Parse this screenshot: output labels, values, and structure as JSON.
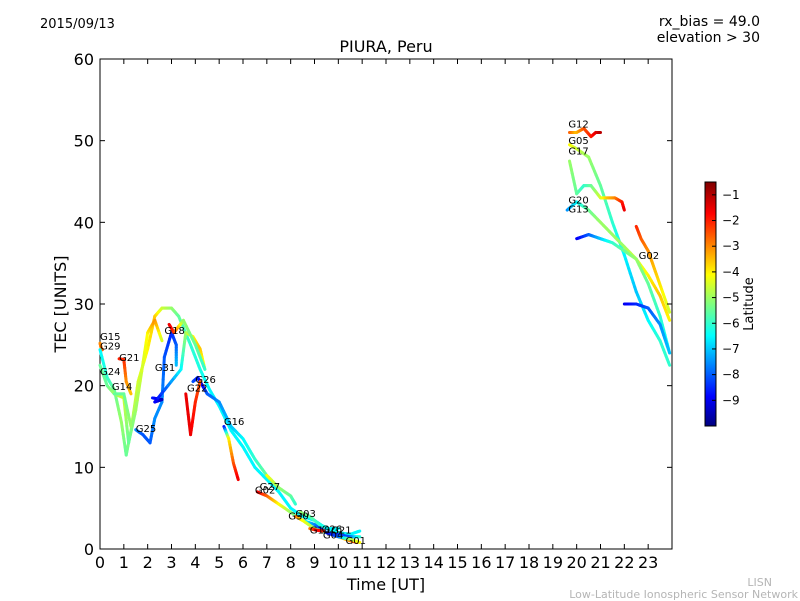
{
  "header": {
    "date": "2015/09/13",
    "rx_bias": "rx_bias = 49.0",
    "elevation": "elevation > 30"
  },
  "footer": {
    "line1": "LISN",
    "line2": "Low-Latitude Ionospheric Sensor Network"
  },
  "chart_data": {
    "type": "scatter",
    "title": "PIURA, Peru",
    "xlabel": "Time [UT]",
    "ylabel": "TEC [UNITS]",
    "xlim": [
      0,
      24
    ],
    "ylim": [
      0,
      60
    ],
    "xticks": [
      "0",
      "1",
      "2",
      "3",
      "4",
      "5",
      "6",
      "7",
      "8",
      "9",
      "10",
      "11",
      "12",
      "13",
      "14",
      "15",
      "16",
      "17",
      "18",
      "19",
      "20",
      "21",
      "22",
      "23"
    ],
    "yticks": [
      "0",
      "10",
      "20",
      "30",
      "40",
      "50",
      "60"
    ],
    "colorbar": {
      "label": "Latitude",
      "range": [
        -10,
        -0.5
      ],
      "ticks": [
        "-1",
        "-2",
        "-3",
        "-4",
        "-5",
        "-6",
        "-7",
        "-8",
        "-9"
      ],
      "colormap": [
        "#00007f",
        "#0000ff",
        "#007fff",
        "#00ffff",
        "#7fff7f",
        "#ffff00",
        "#ff7f00",
        "#ff0000",
        "#7f0000"
      ]
    },
    "series": [
      {
        "name": "G15",
        "points": [
          [
            0.0,
            25.2,
            -3.0
          ],
          [
            0.05,
            24.6,
            -2.8
          ],
          [
            0.1,
            24.4,
            -2.6
          ]
        ]
      },
      {
        "name": "G29",
        "points": [
          [
            0.0,
            24.4,
            -6.5
          ],
          [
            0.3,
            21.0,
            -6.0
          ],
          [
            0.6,
            19.5,
            -5.5
          ],
          [
            0.9,
            15.5,
            -5.0
          ],
          [
            1.1,
            11.5,
            -5.5
          ],
          [
            1.3,
            14.5,
            -5.0
          ],
          [
            1.6,
            20.5,
            -4.5
          ],
          [
            2.0,
            24.5,
            -4.0
          ],
          [
            2.3,
            28.5,
            -3.5
          ],
          [
            2.6,
            29.5,
            -4.5
          ],
          [
            3.0,
            29.5,
            -5.0
          ],
          [
            3.3,
            28.5,
            -5.5
          ],
          [
            3.8,
            25.0,
            -6.0
          ],
          [
            4.2,
            22.0,
            -6.2
          ],
          [
            4.6,
            19.5,
            -6.5
          ],
          [
            5.0,
            17.5,
            -6.5
          ],
          [
            5.5,
            14.5,
            -6.5
          ],
          [
            6.0,
            12.5,
            -6.5
          ],
          [
            6.5,
            10.0,
            -6.5
          ],
          [
            7.0,
            8.5,
            -6.5
          ],
          [
            7.5,
            7.0,
            -6.5
          ],
          [
            8.0,
            5.0,
            -6.5
          ],
          [
            8.5,
            4.0,
            -6.5
          ],
          [
            9.0,
            3.5,
            -6.5
          ],
          [
            9.5,
            2.5,
            -6.5
          ],
          [
            10.0,
            2.0,
            -6.5
          ],
          [
            10.5,
            1.8,
            -6.5
          ],
          [
            10.9,
            2.2,
            -6.5
          ]
        ]
      },
      {
        "name": "G21",
        "points": [
          [
            0.8,
            23.3,
            -2.0
          ],
          [
            1.0,
            23.2,
            -2.0
          ],
          [
            1.1,
            20.5,
            -3.0
          ],
          [
            1.3,
            19.0,
            -3.5
          ]
        ]
      },
      {
        "name": "G24",
        "points": [
          [
            0.0,
            22.5,
            -5.5
          ],
          [
            0.3,
            20.0,
            -5.5
          ],
          [
            0.6,
            19.0,
            -5.0
          ],
          [
            1.0,
            18.5,
            -4.5
          ],
          [
            1.2,
            13.0,
            -5.5
          ],
          [
            1.5,
            17.0,
            -5.0
          ],
          [
            2.0,
            26.5,
            -4.0
          ],
          [
            2.3,
            28.0,
            -3.0
          ],
          [
            2.6,
            25.5,
            -4.5
          ]
        ]
      },
      {
        "name": "G14",
        "points": [
          [
            0.6,
            19.0,
            -5.5
          ],
          [
            1.0,
            19.0,
            -5.5
          ],
          [
            1.3,
            15.0,
            -5.0
          ]
        ]
      },
      {
        "name": "G25",
        "points": [
          [
            1.5,
            14.6,
            -7.5
          ],
          [
            1.8,
            14.0,
            -8.0
          ],
          [
            2.1,
            13.0,
            -8.0
          ],
          [
            2.3,
            16.0,
            -7.5
          ],
          [
            2.6,
            18.0,
            -7.5
          ],
          [
            2.7,
            23.5,
            -8.0
          ],
          [
            3.0,
            26.5,
            -8.5
          ],
          [
            3.2,
            25.0,
            -8.0
          ],
          [
            3.2,
            22.5,
            -7.0
          ]
        ]
      },
      {
        "name": "G31",
        "points": [
          [
            2.2,
            18.5,
            -8.5
          ],
          [
            2.6,
            18.3,
            -9.5
          ],
          [
            2.3,
            18.0,
            -9.0
          ],
          [
            3.4,
            22.0,
            -6.5
          ],
          [
            3.6,
            26.5,
            -5.0
          ],
          [
            3.9,
            26.0,
            -4.0
          ],
          [
            4.2,
            24.5,
            -3.5
          ],
          [
            4.4,
            22.0,
            -4.5
          ]
        ]
      },
      {
        "name": "G18",
        "points": [
          [
            2.9,
            27.5,
            -1.5
          ],
          [
            3.1,
            26.5,
            -2.0
          ],
          [
            3.5,
            28.0,
            -5.0
          ],
          [
            4.0,
            25.0,
            -5.5
          ],
          [
            4.4,
            22.0,
            -6.0
          ]
        ]
      },
      {
        "name": "G26",
        "points": [
          [
            3.9,
            20.5,
            -8.0
          ],
          [
            4.1,
            21.0,
            -8.5
          ],
          [
            4.3,
            20.0,
            -9.0
          ],
          [
            4.5,
            19.0,
            -8.0
          ],
          [
            5.0,
            18.0,
            -7.5
          ],
          [
            5.5,
            15.0,
            -7.0
          ],
          [
            6.0,
            13.5,
            -6.5
          ],
          [
            6.5,
            11.0,
            -6.0
          ],
          [
            7.0,
            9.0,
            -5.5
          ],
          [
            7.5,
            7.5,
            -5.5
          ]
        ]
      },
      {
        "name": "G22",
        "points": [
          [
            3.6,
            19.0,
            -1.5
          ],
          [
            3.8,
            14.0,
            -1.5
          ],
          [
            4.0,
            18.0,
            -2.0
          ],
          [
            4.2,
            20.5,
            -2.5
          ]
        ]
      },
      {
        "name": "G16",
        "points": [
          [
            5.2,
            15.0,
            -9.0
          ],
          [
            5.4,
            13.5,
            -4.0
          ],
          [
            5.6,
            10.5,
            -2.5
          ],
          [
            5.8,
            8.5,
            -1.5
          ]
        ]
      },
      {
        "name": "G27",
        "points": [
          [
            7.0,
            9.0,
            -4.0
          ],
          [
            7.5,
            7.5,
            -5.0
          ],
          [
            8.0,
            6.5,
            -5.5
          ],
          [
            8.2,
            5.5,
            -6.0
          ]
        ]
      },
      {
        "name": "G02",
        "points": [
          [
            6.6,
            7.0,
            -1.5
          ],
          [
            7.0,
            6.5,
            -2.5
          ],
          [
            7.5,
            5.5,
            -4.0
          ],
          [
            8.0,
            4.5,
            -5.0
          ],
          [
            8.5,
            3.5,
            -6.0
          ],
          [
            9.0,
            3.0,
            -7.5
          ],
          [
            9.5,
            2.0,
            -9.0
          ],
          [
            10.5,
            1.5,
            -8.0
          ],
          [
            10.9,
            1.5,
            -6.0
          ]
        ]
      },
      {
        "name": "G30",
        "points": [
          [
            8.2,
            4.0,
            -2.5
          ],
          [
            8.5,
            3.5,
            -4.0
          ],
          [
            9.0,
            2.5,
            -5.0
          ],
          [
            9.5,
            2.0,
            -6.0
          ],
          [
            10.0,
            1.5,
            -4.0
          ],
          [
            10.5,
            1.0,
            -3.0
          ],
          [
            10.8,
            0.8,
            -2.0
          ]
        ]
      },
      {
        "name": "G03",
        "points": [
          [
            8.4,
            4.5,
            -5.0
          ],
          [
            8.8,
            4.0,
            -5.5
          ],
          [
            9.2,
            3.0,
            -6.0
          ],
          [
            9.6,
            2.5,
            -6.5
          ],
          [
            10.0,
            2.5,
            -6.5
          ]
        ]
      },
      {
        "name": "G10",
        "points": [
          [
            8.8,
            2.5,
            -3.0
          ],
          [
            9.1,
            2.3,
            -1.5
          ],
          [
            9.4,
            2.2,
            -2.0
          ]
        ]
      },
      {
        "name": "G01",
        "points": [
          [
            9.5,
            2.0,
            -9.0
          ],
          [
            10.0,
            1.5,
            -8.0
          ],
          [
            10.5,
            1.2,
            -5.0
          ],
          [
            10.9,
            0.8,
            -4.0
          ]
        ]
      },
      {
        "name": "G12",
        "points": [
          [
            19.7,
            51.0,
            -2.5
          ],
          [
            20.0,
            51.0,
            -3.5
          ],
          [
            20.3,
            51.5,
            -2.5
          ],
          [
            20.6,
            50.5,
            -2.0
          ],
          [
            20.8,
            51.0,
            -1.5
          ],
          [
            21.0,
            51.0,
            -1.0
          ]
        ]
      },
      {
        "name": "G05",
        "points": [
          [
            19.7,
            49.5,
            -4.0
          ],
          [
            20.0,
            49.0,
            -4.5
          ],
          [
            20.5,
            48.0,
            -5.0
          ],
          [
            21.0,
            44.5,
            -5.5
          ],
          [
            21.5,
            40.0,
            -6.0
          ],
          [
            22.0,
            36.0,
            -6.5
          ],
          [
            22.5,
            31.5,
            -7.0
          ],
          [
            23.0,
            28.0,
            -6.5
          ],
          [
            23.5,
            25.5,
            -6.0
          ],
          [
            23.9,
            22.5,
            -6.0
          ]
        ]
      },
      {
        "name": "G17",
        "points": [
          [
            19.7,
            47.5,
            -5.0
          ],
          [
            20.0,
            43.5,
            -5.5
          ],
          [
            20.3,
            44.5,
            -6.0
          ],
          [
            20.6,
            44.5,
            -5.5
          ],
          [
            21.0,
            43.0,
            -4.5
          ],
          [
            21.3,
            43.0,
            -3.5
          ],
          [
            21.6,
            43.0,
            -3.0
          ],
          [
            21.9,
            42.5,
            -2.0
          ],
          [
            22.0,
            41.5,
            -1.5
          ]
        ]
      },
      {
        "name": "G20",
        "points": [
          [
            19.6,
            41.5,
            -7.5
          ],
          [
            20.0,
            42.5,
            -6.5
          ],
          [
            20.5,
            41.5,
            -5.5
          ],
          [
            21.0,
            40.0,
            -5.0
          ],
          [
            21.5,
            38.5,
            -5.0
          ],
          [
            22.0,
            37.0,
            -5.0
          ],
          [
            22.5,
            35.5,
            -4.5
          ],
          [
            23.0,
            33.5,
            -4.0
          ],
          [
            23.5,
            31.0,
            -3.5
          ],
          [
            23.9,
            28.0,
            -4.0
          ]
        ]
      },
      {
        "name": "G13",
        "points": [
          [
            20.0,
            38.0,
            -9.0
          ],
          [
            20.5,
            38.5,
            -8.0
          ],
          [
            21.0,
            38.0,
            -7.0
          ],
          [
            21.5,
            37.5,
            -6.0
          ],
          [
            22.0,
            36.5,
            -5.5
          ],
          [
            22.5,
            35.5,
            -5.0
          ],
          [
            23.0,
            32.5,
            -5.5
          ],
          [
            23.5,
            28.5,
            -6.0
          ],
          [
            23.9,
            24.0,
            -6.5
          ]
        ]
      },
      {
        "name": "G02",
        "points": [
          [
            22.0,
            30.0,
            -9.0
          ],
          [
            22.5,
            30.0,
            -8.5
          ],
          [
            23.0,
            29.5,
            -8.0
          ],
          [
            23.5,
            27.5,
            -7.5
          ],
          [
            23.9,
            24.0,
            -7.0
          ]
        ]
      },
      {
        "name": "",
        "points": [
          [
            22.5,
            39.5,
            -2.0
          ],
          [
            22.7,
            38.0,
            -2.5
          ],
          [
            23.0,
            36.5,
            -3.0
          ],
          [
            23.3,
            34.0,
            -3.5
          ],
          [
            23.6,
            31.5,
            -4.0
          ],
          [
            23.9,
            29.0,
            -4.5
          ]
        ]
      }
    ],
    "labels": [
      {
        "text": "G15",
        "x": 0.0,
        "y": 25.6
      },
      {
        "text": "G29",
        "x": 0.0,
        "y": 24.4
      },
      {
        "text": "G21",
        "x": 0.8,
        "y": 23.0
      },
      {
        "text": "G24",
        "x": 0.0,
        "y": 21.3
      },
      {
        "text": "G14",
        "x": 0.5,
        "y": 19.5
      },
      {
        "text": "G31",
        "x": 2.3,
        "y": 21.8
      },
      {
        "text": "G18",
        "x": 2.7,
        "y": 26.3
      },
      {
        "text": "G26",
        "x": 4.0,
        "y": 20.3
      },
      {
        "text": "G22",
        "x": 3.65,
        "y": 19.3
      },
      {
        "text": "G25",
        "x": 1.5,
        "y": 14.3
      },
      {
        "text": "G16",
        "x": 5.2,
        "y": 15.2
      },
      {
        "text": "G27",
        "x": 6.7,
        "y": 7.2
      },
      {
        "text": "G02",
        "x": 6.5,
        "y": 6.8
      },
      {
        "text": "G03",
        "x": 8.2,
        "y": 3.9
      },
      {
        "text": "G30",
        "x": 7.9,
        "y": 3.6
      },
      {
        "text": "G10",
        "x": 8.8,
        "y": 1.9
      },
      {
        "text": "G26",
        "x": 9.3,
        "y": 2.0
      },
      {
        "text": "G21",
        "x": 9.7,
        "y": 1.9
      },
      {
        "text": "G04",
        "x": 9.35,
        "y": 1.3
      },
      {
        "text": "G01",
        "x": 10.3,
        "y": 0.6
      },
      {
        "text": "G12",
        "x": 19.65,
        "y": 51.6
      },
      {
        "text": "G05",
        "x": 19.65,
        "y": 49.6
      },
      {
        "text": "G17",
        "x": 19.65,
        "y": 48.3
      },
      {
        "text": "G20",
        "x": 19.65,
        "y": 42.3
      },
      {
        "text": "G13",
        "x": 19.65,
        "y": 41.2
      },
      {
        "text": "G02",
        "x": 22.6,
        "y": 35.5
      }
    ]
  }
}
